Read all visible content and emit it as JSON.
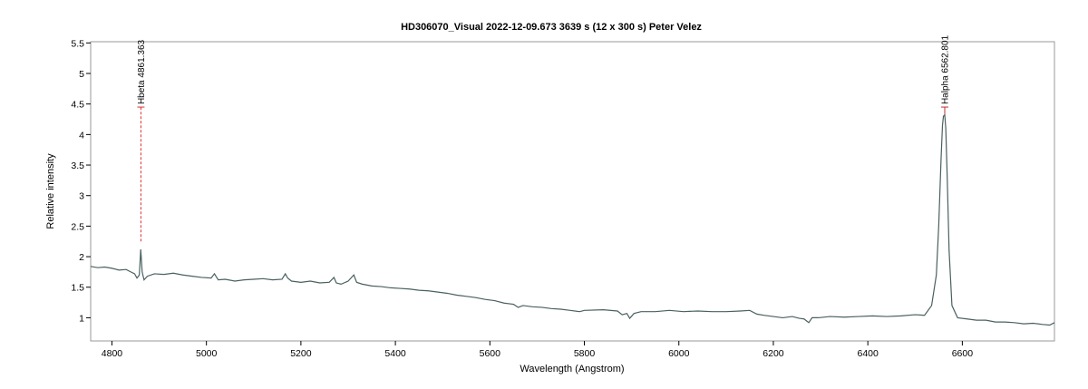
{
  "chart_data": {
    "type": "line",
    "title": "HD306070_Visual   2022-12-09.673   3639 s (12 x 300 s)   Peter Velez",
    "xlabel": "Wavelength (Angstrom)",
    "ylabel": "Relative intensity",
    "xlim": [
      4755,
      6795
    ],
    "ylim": [
      0.62,
      5.52
    ],
    "x_ticks": [
      4800,
      5000,
      5200,
      5400,
      5600,
      5800,
      6000,
      6200,
      6400,
      6600
    ],
    "y_ticks": [
      1,
      1.5,
      2,
      2.5,
      3,
      3.5,
      4,
      4.5,
      5,
      5.5
    ],
    "x_tick_labels": [
      "4800",
      "5000",
      "5200",
      "5400",
      "5600",
      "5800",
      "6000",
      "6200",
      "6400",
      "6600"
    ],
    "y_tick_labels": [
      "1",
      "1.5",
      "2",
      "2.5",
      "3",
      "3.5",
      "4",
      "4.5",
      "5",
      "5.5"
    ],
    "grid": false,
    "line_color": "#4a6060",
    "series": [
      {
        "name": "",
        "x": [
          4755,
          4770,
          4785,
          4800,
          4815,
          4830,
          4840,
          4848,
          4853,
          4858,
          4861,
          4864,
          4868,
          4875,
          4890,
          4910,
          4930,
          4950,
          4970,
          4990,
          5010,
          5017,
          5025,
          5040,
          5060,
          5080,
          5100,
          5120,
          5140,
          5160,
          5167,
          5172,
          5180,
          5200,
          5220,
          5240,
          5260,
          5270,
          5275,
          5285,
          5300,
          5312,
          5318,
          5330,
          5350,
          5370,
          5390,
          5410,
          5430,
          5450,
          5470,
          5490,
          5510,
          5530,
          5550,
          5570,
          5590,
          5610,
          5630,
          5650,
          5660,
          5670,
          5690,
          5710,
          5730,
          5750,
          5770,
          5790,
          5800,
          5840,
          5870,
          5880,
          5890,
          5896,
          5905,
          5920,
          5950,
          5980,
          6010,
          6040,
          6070,
          6100,
          6130,
          6150,
          6165,
          6180,
          6200,
          6220,
          6240,
          6255,
          6265,
          6275,
          6282,
          6295,
          6320,
          6350,
          6380,
          6410,
          6440,
          6470,
          6500,
          6520,
          6535,
          6545,
          6550,
          6555,
          6558,
          6560,
          6562.8,
          6565,
          6568,
          6572,
          6578,
          6590,
          6610,
          6630,
          6650,
          6670,
          6690,
          6710,
          6730,
          6750,
          6770,
          6785,
          6795
        ],
        "y": [
          1.84,
          1.82,
          1.83,
          1.81,
          1.78,
          1.79,
          1.75,
          1.72,
          1.65,
          1.7,
          2.12,
          1.75,
          1.62,
          1.68,
          1.72,
          1.71,
          1.73,
          1.7,
          1.68,
          1.66,
          1.65,
          1.72,
          1.62,
          1.63,
          1.6,
          1.62,
          1.63,
          1.64,
          1.62,
          1.63,
          1.72,
          1.65,
          1.6,
          1.58,
          1.6,
          1.57,
          1.58,
          1.66,
          1.57,
          1.55,
          1.6,
          1.7,
          1.58,
          1.55,
          1.52,
          1.51,
          1.49,
          1.48,
          1.47,
          1.45,
          1.44,
          1.42,
          1.4,
          1.37,
          1.35,
          1.33,
          1.3,
          1.28,
          1.24,
          1.22,
          1.17,
          1.2,
          1.18,
          1.17,
          1.15,
          1.14,
          1.12,
          1.1,
          1.12,
          1.13,
          1.11,
          1.05,
          1.07,
          0.99,
          1.07,
          1.1,
          1.1,
          1.12,
          1.1,
          1.11,
          1.1,
          1.1,
          1.11,
          1.12,
          1.06,
          1.04,
          1.02,
          1.0,
          1.02,
          0.99,
          0.98,
          0.92,
          1.0,
          1.0,
          1.02,
          1.01,
          1.02,
          1.03,
          1.02,
          1.03,
          1.05,
          1.04,
          1.2,
          1.7,
          2.5,
          3.6,
          4.15,
          4.3,
          4.32,
          4.1,
          3.3,
          2.1,
          1.2,
          1.0,
          0.98,
          0.96,
          0.96,
          0.93,
          0.93,
          0.92,
          0.9,
          0.91,
          0.89,
          0.88,
          0.92
        ]
      }
    ],
    "line_markers": [
      {
        "label": "Hbeta 4861.363",
        "x": 4861.363,
        "y_from": 2.25,
        "y_to": 4.45,
        "style": "dashed",
        "color": "#e03030"
      },
      {
        "label": "Halpha 6562.801",
        "x": 6562.801,
        "y_from": 4.32,
        "y_to": 4.45,
        "style": "solid",
        "color": "#c03030"
      }
    ]
  }
}
